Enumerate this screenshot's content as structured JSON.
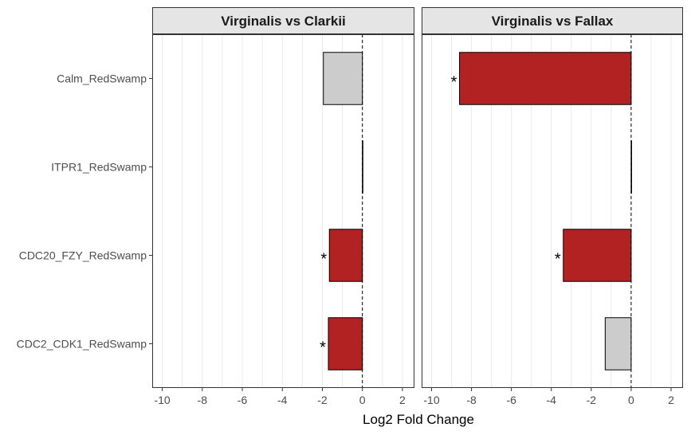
{
  "chart_data": {
    "type": "bar",
    "orientation": "horizontal",
    "xlabel": "Log2 Fold Change",
    "ylabel": "",
    "xlim": [
      -10.5,
      2.6
    ],
    "xticks": [
      -10,
      -8,
      -6,
      -4,
      -2,
      0,
      2
    ],
    "categories": [
      "Calm_RedSwamp",
      "ITPR1_RedSwamp",
      "CDC20_FZY_RedSwamp",
      "CDC2_CDK1_RedSwamp"
    ],
    "panels": [
      {
        "title": "Virginalis vs Clarkii",
        "values": [
          -1.95,
          0.0,
          -1.65,
          -1.7
        ],
        "significant": [
          false,
          false,
          true,
          true
        ]
      },
      {
        "title": "Virginalis vs Fallax",
        "values": [
          -8.6,
          0.0,
          -3.4,
          -1.3
        ],
        "significant": [
          true,
          false,
          true,
          false
        ]
      }
    ],
    "significance_marker": "*",
    "colors": {
      "significant": "#b22222",
      "not_significant": "#cccccc",
      "strip_fill": "#e5e5e5",
      "gridline": "#ebebeb"
    },
    "grid": true,
    "reference_line_at": 0
  }
}
